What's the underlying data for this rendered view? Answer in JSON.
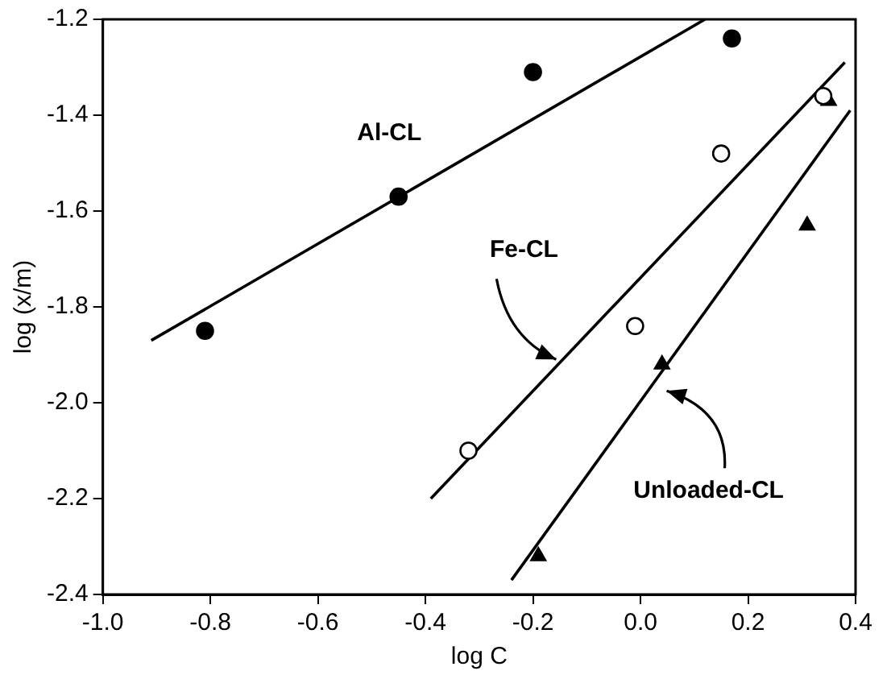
{
  "chart_data": {
    "type": "scatter",
    "xlabel": "log C",
    "ylabel": "log (x/m)",
    "xlim": [
      -1.0,
      0.4
    ],
    "xticks": [
      {
        "value": -1.0,
        "label": "-1.0"
      },
      {
        "value": -0.8,
        "label": "-0.8"
      },
      {
        "value": -0.6,
        "label": "-0.6"
      },
      {
        "value": -0.4,
        "label": "-0.4"
      },
      {
        "value": -0.2,
        "label": "-0.2"
      },
      {
        "value": 0,
        "label": "0.0"
      },
      {
        "value": 0.2,
        "label": "0.2"
      },
      {
        "value": 0.4,
        "label": "0.4"
      }
    ],
    "ylim": [
      -2.4,
      -1.2
    ],
    "yticks": [
      {
        "value": -2.4,
        "label": "-2.4"
      },
      {
        "value": -2.2,
        "label": "-2.2"
      },
      {
        "value": -2.0,
        "label": "-2.0"
      },
      {
        "value": -1.8,
        "label": "-1.8"
      },
      {
        "value": -1.6,
        "label": "-1.6"
      },
      {
        "value": -1.4,
        "label": "-1.4"
      },
      {
        "value": -1.2,
        "label": "-1.2"
      }
    ],
    "grid": false,
    "legend": false,
    "series": [
      {
        "type": "scatter",
        "marker": "circle",
        "color": "#000000",
        "x": [
          -0.81,
          -0.45,
          -0.2,
          0.17
        ],
        "values": [
          -1.85,
          -1.57,
          -1.31,
          -1.24
        ]
      },
      {
        "type": "scatter",
        "marker": "circle",
        "color": "#000000",
        "x": [
          -0.32,
          -0.01,
          0.15,
          0.34
        ],
        "values": [
          -2.1,
          -1.84,
          -1.48,
          -1.36
        ]
      },
      {
        "type": "scatter",
        "marker": "triangle",
        "color": "#000000",
        "x": [
          -0.19,
          0.04,
          0.31,
          0.35
        ],
        "values": [
          -2.32,
          -1.92,
          -1.63,
          -1.37
        ]
      },
      {
        "type": "line",
        "name": "Al-CL",
        "marker": "none",
        "color": "#000000",
        "x": [
          -0.91,
          0.12
        ],
        "values": [
          -1.87,
          -1.2
        ]
      },
      {
        "type": "line",
        "name": "Fe-CL",
        "marker": "none",
        "color": "#000000",
        "x": [
          -0.39,
          0.38
        ],
        "values": [
          -2.2,
          -1.29
        ]
      },
      {
        "type": "line",
        "name": "Unloaded-CL",
        "marker": "none",
        "color": "#000000",
        "x": [
          -0.24,
          0.39
        ],
        "values": [
          -2.37,
          -1.39
        ]
      }
    ]
  }
}
